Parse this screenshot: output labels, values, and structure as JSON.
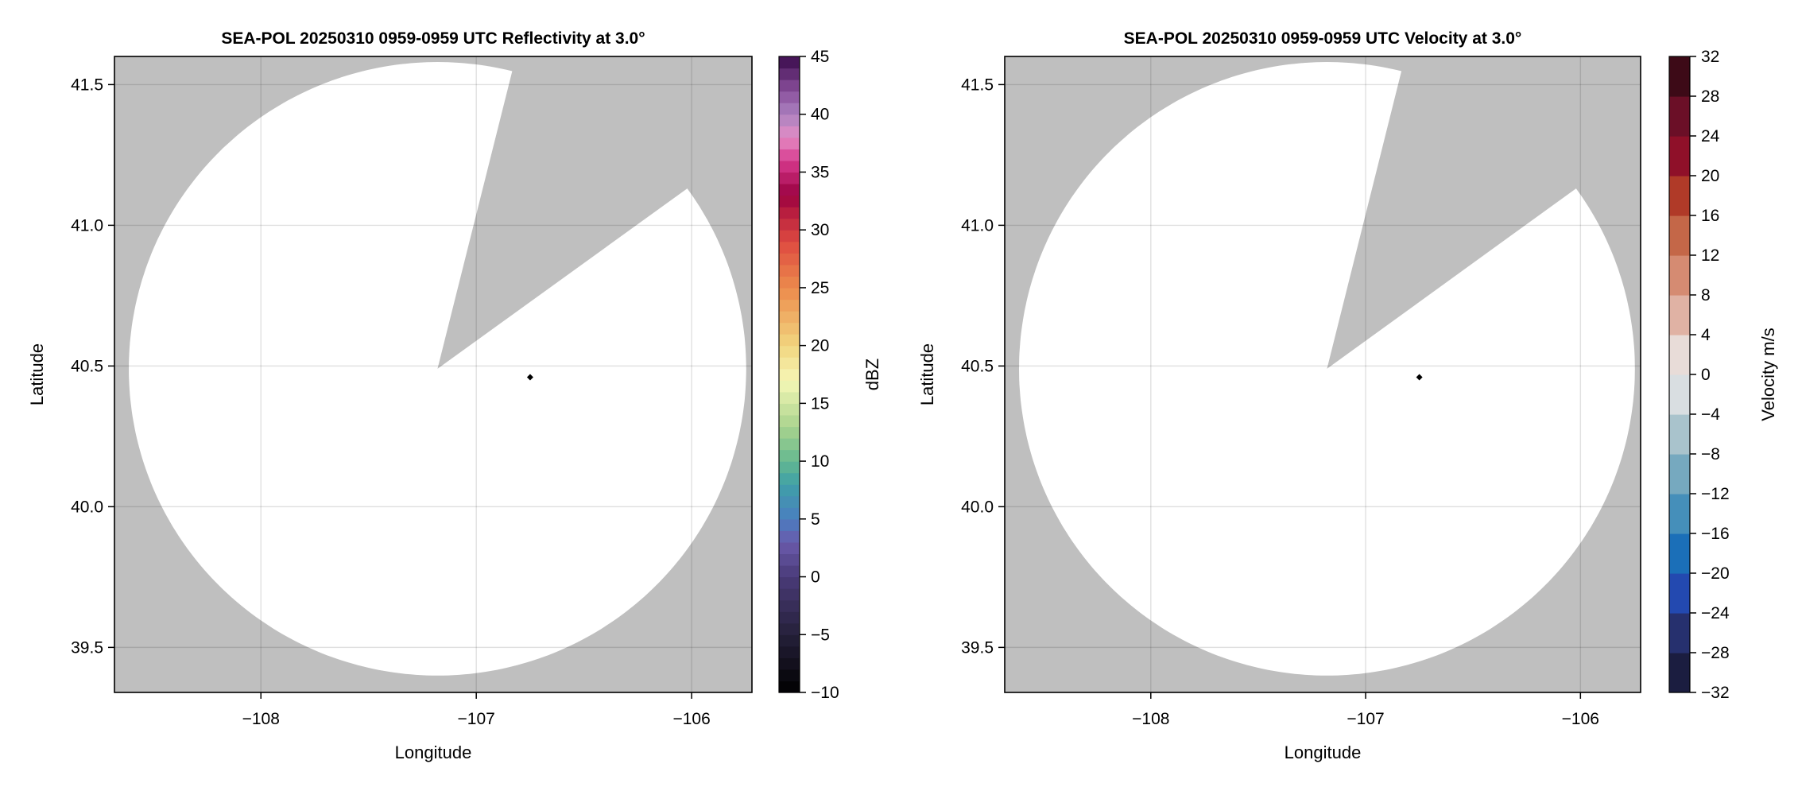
{
  "chart_data": [
    {
      "type": "heatmap",
      "title": "SEA-POL 20250310 0959-0959 UTC Reflectivity at 3.0°",
      "xlabel": "Longitude",
      "ylabel": "Latitude",
      "xlim": [
        -108.68,
        -105.72
      ],
      "ylim": [
        39.34,
        41.6
      ],
      "xticks": [
        -108,
        -107,
        -106
      ],
      "xtick_labels": [
        "−108",
        "−107",
        "−106"
      ],
      "yticks": [
        39.5,
        40.0,
        40.5,
        41.0,
        41.5
      ],
      "ytick_labels": [
        "39.5",
        "40.0",
        "40.5",
        "41.0",
        "41.5"
      ],
      "grid": true,
      "missing_color": "#bfbfbf",
      "no_echo_color": "#ffffff",
      "radar_site": {
        "lon": -107.18,
        "lat": 40.49
      },
      "max_range_km": 121,
      "blocked_sector_azimuth_deg": [
        14,
        54
      ],
      "marker": {
        "lon": -106.75,
        "lat": 40.46,
        "color": "#000000"
      },
      "colorbar": {
        "label": "dBZ",
        "range": [
          -10,
          45
        ],
        "step": 1,
        "ticks": [
          -10,
          -5,
          0,
          5,
          10,
          15,
          20,
          25,
          30,
          35,
          40,
          45
        ],
        "tick_labels": [
          "−10",
          "−5",
          "0",
          "5",
          "10",
          "15",
          "20",
          "25",
          "30",
          "35",
          "40",
          "45"
        ],
        "color_stops": [
          [
            -10,
            "#000000"
          ],
          [
            -5,
            "#25203a"
          ],
          [
            0,
            "#4a3b78"
          ],
          [
            3,
            "#6a5aac"
          ],
          [
            5,
            "#4a7ec0"
          ],
          [
            8,
            "#3fa0a8"
          ],
          [
            10,
            "#64b890"
          ],
          [
            13,
            "#a9d48e"
          ],
          [
            17,
            "#f6f7b6"
          ],
          [
            20,
            "#f1d57f"
          ],
          [
            25,
            "#ec8b4c"
          ],
          [
            29,
            "#de4a40"
          ],
          [
            32,
            "#b0153f"
          ],
          [
            33,
            "#9a0040"
          ],
          [
            36,
            "#d73a8e"
          ],
          [
            38,
            "#e48cc5"
          ],
          [
            40,
            "#ab82c0"
          ],
          [
            42,
            "#8a4f9c"
          ],
          [
            45,
            "#3a0a4c"
          ]
        ]
      }
    },
    {
      "type": "heatmap",
      "title": "SEA-POL 20250310 0959-0959 UTC Velocity at 3.0°",
      "xlabel": "Longitude",
      "ylabel": "Latitude",
      "xlim": [
        -108.68,
        -105.72
      ],
      "ylim": [
        39.34,
        41.6
      ],
      "xticks": [
        -108,
        -107,
        -106
      ],
      "xtick_labels": [
        "−108",
        "−107",
        "−106"
      ],
      "yticks": [
        39.5,
        40.0,
        40.5,
        41.0,
        41.5
      ],
      "ytick_labels": [
        "39.5",
        "40.0",
        "40.5",
        "41.0",
        "41.5"
      ],
      "grid": true,
      "missing_color": "#bfbfbf",
      "no_echo_color": "#ffffff",
      "radar_site": {
        "lon": -107.18,
        "lat": 40.49
      },
      "max_range_km": 121,
      "blocked_sector_azimuth_deg": [
        14,
        54
      ],
      "marker": {
        "lon": -106.75,
        "lat": 40.46,
        "color": "#000000"
      },
      "colorbar": {
        "label": "Velocity m/s",
        "range": [
          -32,
          32
        ],
        "step": 4,
        "ticks": [
          -32,
          -28,
          -24,
          -20,
          -16,
          -12,
          -8,
          -4,
          0,
          4,
          8,
          12,
          16,
          20,
          24,
          28,
          32
        ],
        "tick_labels": [
          "−32",
          "−28",
          "−24",
          "−20",
          "−16",
          "−12",
          "−8",
          "−4",
          "0",
          "4",
          "8",
          "12",
          "16",
          "20",
          "24",
          "28",
          "32"
        ],
        "band_colors": [
          "#1b1d40",
          "#26306e",
          "#2349b0",
          "#1b6fb8",
          "#458fba",
          "#76a9bf",
          "#a9c3cc",
          "#d9dee1",
          "#e8dcd8",
          "#e0b2a4",
          "#d58b72",
          "#c46748",
          "#b03a28",
          "#8f1029",
          "#6b0f27",
          "#3d0a17"
        ]
      }
    }
  ]
}
